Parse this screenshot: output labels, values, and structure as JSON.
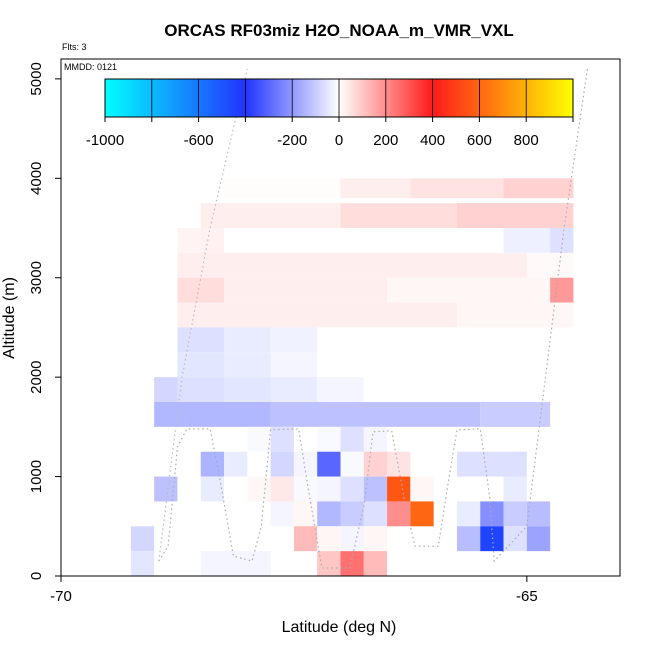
{
  "chart_data": {
    "type": "heatmap",
    "title": "ORCAS RF03miz H2O_NOAA_m_VMR_VXL",
    "flights_note": "Flts: 3",
    "date_note": "MMDD: 0121",
    "xlabel": "Latitude (deg N)",
    "ylabel": "Altitude (m)",
    "xlim": [
      -70,
      -64
    ],
    "ylim": [
      0,
      5200
    ],
    "xticks": [
      -70,
      -65
    ],
    "xtick_labels": [
      "-70",
      "-65"
    ],
    "yticks": [
      0,
      1000,
      2000,
      3000,
      4000,
      5000
    ],
    "ytick_labels": [
      "0",
      "1000",
      "2000",
      "3000",
      "4000",
      "5000"
    ],
    "colorbar": {
      "min": -1000,
      "max": 1000,
      "tick_values": [
        -1000,
        -600,
        -200,
        0,
        200,
        400,
        600,
        800
      ],
      "tick_labels": [
        "-1000",
        "-600",
        "-200",
        "0",
        "200",
        "400",
        "600",
        "800"
      ],
      "stops": [
        {
          "v": -1000,
          "color": "#00ffff"
        },
        {
          "v": -400,
          "color": "#2233ff"
        },
        {
          "v": 0,
          "color": "#ffffff"
        },
        {
          "v": 400,
          "color": "#ff1a1a"
        },
        {
          "v": 1000,
          "color": "#ffff00"
        }
      ]
    },
    "cells": [
      {
        "x0": -68.25,
        "x1": -67.0,
        "y0": 3800,
        "y1": 4000,
        "v": 5
      },
      {
        "x0": -67.0,
        "x1": -66.25,
        "y0": 3800,
        "y1": 4000,
        "v": 30
      },
      {
        "x0": -66.25,
        "x1": -65.25,
        "y0": 3800,
        "y1": 4000,
        "v": 50
      },
      {
        "x0": -65.25,
        "x1": -64.5,
        "y0": 3800,
        "y1": 4000,
        "v": 80
      },
      {
        "x0": -68.5,
        "x1": -67.0,
        "y0": 3500,
        "y1": 3750,
        "v": 30
      },
      {
        "x0": -67.0,
        "x1": -65.75,
        "y0": 3500,
        "y1": 3750,
        "v": 60
      },
      {
        "x0": -65.75,
        "x1": -64.5,
        "y0": 3500,
        "y1": 3750,
        "v": 80
      },
      {
        "x0": -68.75,
        "x1": -68.5,
        "y0": 3250,
        "y1": 3500,
        "v": 20
      },
      {
        "x0": -68.5,
        "x1": -68.25,
        "y0": 3250,
        "y1": 3500,
        "v": 25
      },
      {
        "x0": -68.25,
        "x1": -65.25,
        "y0": 3250,
        "y1": 3500,
        "v": 0
      },
      {
        "x0": -65.25,
        "x1": -64.75,
        "y0": 3250,
        "y1": 3500,
        "v": -30
      },
      {
        "x0": -64.75,
        "x1": -64.5,
        "y0": 3250,
        "y1": 3500,
        "v": -60
      },
      {
        "x0": -68.75,
        "x1": -65.0,
        "y0": 3000,
        "y1": 3250,
        "v": 30
      },
      {
        "x0": -65.0,
        "x1": -64.5,
        "y0": 3000,
        "y1": 3250,
        "v": 10
      },
      {
        "x0": -68.75,
        "x1": -68.25,
        "y0": 2750,
        "y1": 3000,
        "v": 60
      },
      {
        "x0": -68.25,
        "x1": -66.5,
        "y0": 2750,
        "y1": 3000,
        "v": 30
      },
      {
        "x0": -66.5,
        "x1": -64.75,
        "y0": 2750,
        "y1": 3000,
        "v": 15
      },
      {
        "x0": -64.75,
        "x1": -64.5,
        "y0": 2750,
        "y1": 3000,
        "v": 180
      },
      {
        "x0": -68.75,
        "x1": -65.75,
        "y0": 2500,
        "y1": 2750,
        "v": 30
      },
      {
        "x0": -65.75,
        "x1": -64.5,
        "y0": 2500,
        "y1": 2750,
        "v": 15
      },
      {
        "x0": -68.75,
        "x1": -68.25,
        "y0": 2250,
        "y1": 2500,
        "v": -60
      },
      {
        "x0": -68.25,
        "x1": -67.75,
        "y0": 2250,
        "y1": 2500,
        "v": -40
      },
      {
        "x0": -67.75,
        "x1": -67.25,
        "y0": 2250,
        "y1": 2500,
        "v": -25
      },
      {
        "x0": -68.75,
        "x1": -68.25,
        "y0": 2000,
        "y1": 2250,
        "v": -50
      },
      {
        "x0": -68.25,
        "x1": -67.75,
        "y0": 2000,
        "y1": 2250,
        "v": -40
      },
      {
        "x0": -67.75,
        "x1": -67.25,
        "y0": 2000,
        "y1": 2250,
        "v": -20
      },
      {
        "x0": -69.0,
        "x1": -68.75,
        "y0": 1750,
        "y1": 2000,
        "v": -80
      },
      {
        "x0": -68.75,
        "x1": -68.25,
        "y0": 1750,
        "y1": 2000,
        "v": -60
      },
      {
        "x0": -68.25,
        "x1": -67.75,
        "y0": 1750,
        "y1": 2000,
        "v": -50
      },
      {
        "x0": -67.75,
        "x1": -67.25,
        "y0": 1750,
        "y1": 2000,
        "v": -40
      },
      {
        "x0": -67.25,
        "x1": -66.75,
        "y0": 1750,
        "y1": 2000,
        "v": -20
      },
      {
        "x0": -69.0,
        "x1": -67.75,
        "y0": 1500,
        "y1": 1750,
        "v": -140
      },
      {
        "x0": -67.75,
        "x1": -65.5,
        "y0": 1500,
        "y1": 1750,
        "v": -120
      },
      {
        "x0": -65.5,
        "x1": -64.75,
        "y0": 1500,
        "y1": 1750,
        "v": -100
      },
      {
        "x0": -67.75,
        "x1": -67.5,
        "y0": 1250,
        "y1": 1500,
        "v": -60
      },
      {
        "x0": -68.0,
        "x1": -67.75,
        "y0": 1250,
        "y1": 1500,
        "v": -10
      },
      {
        "x0": -67.25,
        "x1": -67.0,
        "y0": 1250,
        "y1": 1500,
        "v": -10
      },
      {
        "x0": -67.0,
        "x1": -66.75,
        "y0": 1250,
        "y1": 1500,
        "v": -60
      },
      {
        "x0": -66.75,
        "x1": -66.5,
        "y0": 1250,
        "y1": 1500,
        "v": -20
      },
      {
        "x0": -68.5,
        "x1": -68.25,
        "y0": 1000,
        "y1": 1250,
        "v": -150
      },
      {
        "x0": -68.25,
        "x1": -68.0,
        "y0": 1000,
        "y1": 1250,
        "v": -40
      },
      {
        "x0": -67.75,
        "x1": -67.5,
        "y0": 1000,
        "y1": 1250,
        "v": -80
      },
      {
        "x0": -67.5,
        "x1": -67.25,
        "y0": 1000,
        "y1": 1250,
        "v": -20
      },
      {
        "x0": -67.25,
        "x1": -67.0,
        "y0": 1000,
        "y1": 1250,
        "v": -300
      },
      {
        "x0": -67.0,
        "x1": -66.75,
        "y0": 1000,
        "y1": 1250,
        "v": -10
      },
      {
        "x0": -66.75,
        "x1": -66.5,
        "y0": 1000,
        "y1": 1250,
        "v": 80
      },
      {
        "x0": -66.5,
        "x1": -66.25,
        "y0": 1000,
        "y1": 1250,
        "v": 50
      },
      {
        "x0": -65.75,
        "x1": -65.0,
        "y0": 1000,
        "y1": 1250,
        "v": -60
      },
      {
        "x0": -69.0,
        "x1": -68.75,
        "y0": 750,
        "y1": 1000,
        "v": -120
      },
      {
        "x0": -68.5,
        "x1": -68.25,
        "y0": 750,
        "y1": 1000,
        "v": -40
      },
      {
        "x0": -68.0,
        "x1": -67.75,
        "y0": 750,
        "y1": 1000,
        "v": 15
      },
      {
        "x0": -67.75,
        "x1": -67.5,
        "y0": 750,
        "y1": 1000,
        "v": 40
      },
      {
        "x0": -67.5,
        "x1": -67.25,
        "y0": 750,
        "y1": 1000,
        "v": -10
      },
      {
        "x0": -67.25,
        "x1": -67.0,
        "y0": 750,
        "y1": 1000,
        "v": -20
      },
      {
        "x0": -67.0,
        "x1": -66.75,
        "y0": 750,
        "y1": 1000,
        "v": -60
      },
      {
        "x0": -66.75,
        "x1": -66.5,
        "y0": 750,
        "y1": 1000,
        "v": -120
      },
      {
        "x0": -66.5,
        "x1": -66.25,
        "y0": 750,
        "y1": 1000,
        "v": 560
      },
      {
        "x0": -66.25,
        "x1": -66.0,
        "y0": 750,
        "y1": 1000,
        "v": 15
      },
      {
        "x0": -65.25,
        "x1": -65.0,
        "y0": 750,
        "y1": 1000,
        "v": -40
      },
      {
        "x0": -67.75,
        "x1": -67.5,
        "y0": 500,
        "y1": 750,
        "v": -20
      },
      {
        "x0": -67.5,
        "x1": -67.25,
        "y0": 500,
        "y1": 750,
        "v": 15
      },
      {
        "x0": -67.25,
        "x1": -67.0,
        "y0": 500,
        "y1": 750,
        "v": -140
      },
      {
        "x0": -67.0,
        "x1": -66.75,
        "y0": 500,
        "y1": 750,
        "v": -100
      },
      {
        "x0": -66.75,
        "x1": -66.5,
        "y0": 500,
        "y1": 750,
        "v": -60
      },
      {
        "x0": -66.5,
        "x1": -66.25,
        "y0": 500,
        "y1": 750,
        "v": 200
      },
      {
        "x0": -66.25,
        "x1": -66.0,
        "y0": 500,
        "y1": 750,
        "v": 600
      },
      {
        "x0": -65.75,
        "x1": -65.5,
        "y0": 500,
        "y1": 750,
        "v": -40
      },
      {
        "x0": -65.5,
        "x1": -65.25,
        "y0": 500,
        "y1": 750,
        "v": -220
      },
      {
        "x0": -65.25,
        "x1": -65.0,
        "y0": 500,
        "y1": 750,
        "v": -100
      },
      {
        "x0": -65.0,
        "x1": -64.75,
        "y0": 500,
        "y1": 750,
        "v": -130
      },
      {
        "x0": -69.25,
        "x1": -69.0,
        "y0": 250,
        "y1": 500,
        "v": -80
      },
      {
        "x0": -67.5,
        "x1": -67.25,
        "y0": 250,
        "y1": 500,
        "v": 120
      },
      {
        "x0": -67.25,
        "x1": -67.0,
        "y0": 250,
        "y1": 500,
        "v": 15
      },
      {
        "x0": -67.0,
        "x1": -66.75,
        "y0": 250,
        "y1": 500,
        "v": -20
      },
      {
        "x0": -66.75,
        "x1": -66.5,
        "y0": 250,
        "y1": 500,
        "v": 15
      },
      {
        "x0": -65.75,
        "x1": -65.5,
        "y0": 250,
        "y1": 500,
        "v": -130
      },
      {
        "x0": -65.5,
        "x1": -65.25,
        "y0": 250,
        "y1": 500,
        "v": -450
      },
      {
        "x0": -65.25,
        "x1": -65.0,
        "y0": 250,
        "y1": 500,
        "v": -60
      },
      {
        "x0": -65.0,
        "x1": -64.75,
        "y0": 250,
        "y1": 500,
        "v": -180
      },
      {
        "x0": -69.25,
        "x1": -69.0,
        "y0": 0,
        "y1": 250,
        "v": -50
      },
      {
        "x0": -68.5,
        "x1": -67.75,
        "y0": 0,
        "y1": 250,
        "v": -20
      },
      {
        "x0": -67.25,
        "x1": -67.0,
        "y0": 0,
        "y1": 250,
        "v": 100
      },
      {
        "x0": -67.0,
        "x1": -66.75,
        "y0": 0,
        "y1": 250,
        "v": 250
      },
      {
        "x0": -66.75,
        "x1": -66.5,
        "y0": 0,
        "y1": 250,
        "v": 120
      }
    ],
    "flight_track": [
      {
        "lat": -68.95,
        "alt": 150
      },
      {
        "lat": -68.85,
        "alt": 300
      },
      {
        "lat": -68.75,
        "alt": 1300
      },
      {
        "lat": -68.65,
        "alt": 1480
      },
      {
        "lat": -68.4,
        "alt": 1480
      },
      {
        "lat": -68.3,
        "alt": 1000
      },
      {
        "lat": -68.15,
        "alt": 200
      },
      {
        "lat": -67.95,
        "alt": 150
      },
      {
        "lat": -67.85,
        "alt": 500
      },
      {
        "lat": -67.75,
        "alt": 1470
      },
      {
        "lat": -67.45,
        "alt": 1480
      },
      {
        "lat": -67.35,
        "alt": 900
      },
      {
        "lat": -67.2,
        "alt": 80
      },
      {
        "lat": -66.9,
        "alt": 80
      },
      {
        "lat": -66.75,
        "alt": 700
      },
      {
        "lat": -66.65,
        "alt": 1450
      },
      {
        "lat": -66.45,
        "alt": 1460
      },
      {
        "lat": -66.3,
        "alt": 700
      },
      {
        "lat": -66.2,
        "alt": 300
      },
      {
        "lat": -65.95,
        "alt": 300
      },
      {
        "lat": -65.85,
        "alt": 900
      },
      {
        "lat": -65.75,
        "alt": 1470
      },
      {
        "lat": -65.5,
        "alt": 1480
      },
      {
        "lat": -65.4,
        "alt": 800
      },
      {
        "lat": -65.35,
        "alt": 150
      },
      {
        "lat": -65.2,
        "alt": 300
      },
      {
        "lat": -65.0,
        "alt": 500
      },
      {
        "lat": -64.8,
        "alt": 2000
      },
      {
        "lat": -64.6,
        "alt": 3500
      },
      {
        "lat": -64.35,
        "alt": 5100
      }
    ],
    "flight_track_ascent": [
      {
        "lat": -68.95,
        "alt": 150
      },
      {
        "lat": -68.7,
        "alt": 2000
      },
      {
        "lat": -68.4,
        "alt": 3500
      },
      {
        "lat": -68.0,
        "alt": 5100
      }
    ]
  }
}
